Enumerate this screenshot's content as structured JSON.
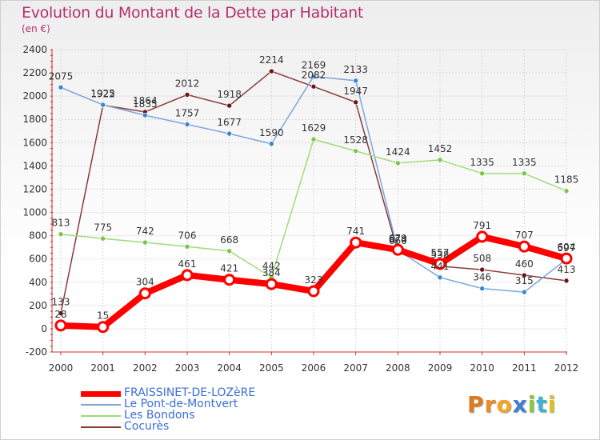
{
  "chart_data": {
    "type": "line",
    "title": "Evolution du Montant de la Dette par Habitant",
    "subtitle": "(en €)",
    "xlabel": "",
    "ylabel": "",
    "ylim": [
      -200,
      2400
    ],
    "y_ticks": [
      "-200",
      "0",
      "200",
      "400",
      "600",
      "800",
      "1000",
      "1200",
      "1400",
      "1600",
      "1800",
      "2000",
      "2200",
      "2400"
    ],
    "categories": [
      "2000",
      "2001",
      "2002",
      "2003",
      "2004",
      "2005",
      "2006",
      "2007",
      "2008",
      "2009",
      "2010",
      "2011",
      "2012"
    ],
    "series": [
      {
        "name": "FRAISSINET-DE-LOZèRE",
        "color": "#ff0000",
        "point_color": "#ff0000",
        "values": [
          28,
          15,
          304,
          461,
          421,
          384,
          323,
          741,
          679,
          557,
          791,
          707,
          604
        ],
        "labels": [
          "28",
          "15",
          "304",
          "461",
          "421",
          "384",
          "323",
          "741",
          "679",
          "557",
          "791",
          "707",
          "604"
        ]
      },
      {
        "name": "Le Pont-de-Montvert",
        "color": "#7da7d9",
        "point_color": "#3a86d1",
        "values": [
          2075,
          1925,
          1835,
          1757,
          1677,
          1590,
          2169,
          2133,
          674,
          441,
          346,
          315,
          597
        ],
        "labels": [
          "2075",
          "1925",
          "1835",
          "1757",
          "1677",
          "1590",
          "2169",
          "2133",
          "674",
          "441",
          "346",
          "315",
          "597"
        ]
      },
      {
        "name": "Les Bondons",
        "color": "#9fdc7a",
        "point_color": "#7cc44a",
        "values": [
          813,
          775,
          742,
          706,
          668,
          442,
          1629,
          1528,
          1424,
          1452,
          1335,
          1335,
          1185
        ],
        "labels": [
          "813",
          "775",
          "742",
          "706",
          "668",
          "442",
          "1629",
          "1528",
          "1424",
          "1452",
          "1335",
          "1335",
          "1185"
        ]
      },
      {
        "name": "Cocurès",
        "color": "#8b3a3a",
        "point_color": "#6e1414",
        "values": [
          133,
          1922,
          1864,
          2012,
          1918,
          2214,
          2082,
          1947,
          660,
          538,
          508,
          460,
          413
        ],
        "labels": [
          "133",
          "1922",
          "1864",
          "2012",
          "1918",
          "2214",
          "2082",
          "1947",
          "660",
          "538",
          "508",
          "460",
          "413"
        ]
      }
    ]
  },
  "brand": {
    "letters": [
      "P",
      "r",
      "o",
      "x",
      "i",
      "t",
      "i"
    ],
    "colors": [
      "#e07a1f",
      "#f08a24",
      "#f5a623",
      "#3f7fd6",
      "#8cc63f",
      "#3fb3d6",
      "#e0c020"
    ]
  }
}
